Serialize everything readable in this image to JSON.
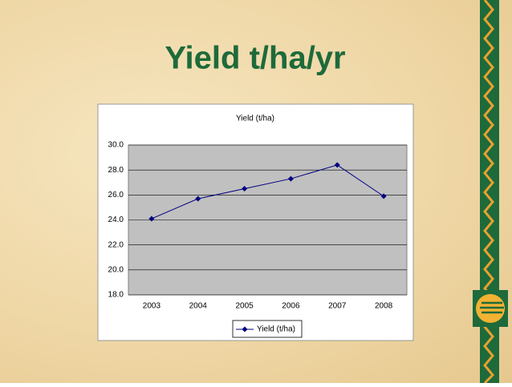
{
  "slide": {
    "title": "Yield t/ha/yr"
  },
  "chart_data": {
    "type": "line",
    "title": "Yield (t/ha)",
    "categories": [
      "2003",
      "2004",
      "2005",
      "2006",
      "2007",
      "2008"
    ],
    "series": [
      {
        "name": "Yield (t/ha)",
        "color": "#000080",
        "values": [
          24.1,
          25.7,
          26.5,
          27.3,
          28.4,
          25.9
        ]
      }
    ],
    "ylim": [
      18,
      30
    ],
    "yticks": [
      {
        "value": 18,
        "label": "18.0"
      },
      {
        "value": 20,
        "label": "20.0"
      },
      {
        "value": 22,
        "label": "22.0"
      },
      {
        "value": 24,
        "label": "24.0"
      },
      {
        "value": 26,
        "label": "26.0"
      },
      {
        "value": 28,
        "label": "28.0"
      },
      {
        "value": 30,
        "label": "30.0"
      }
    ],
    "grid": true
  }
}
